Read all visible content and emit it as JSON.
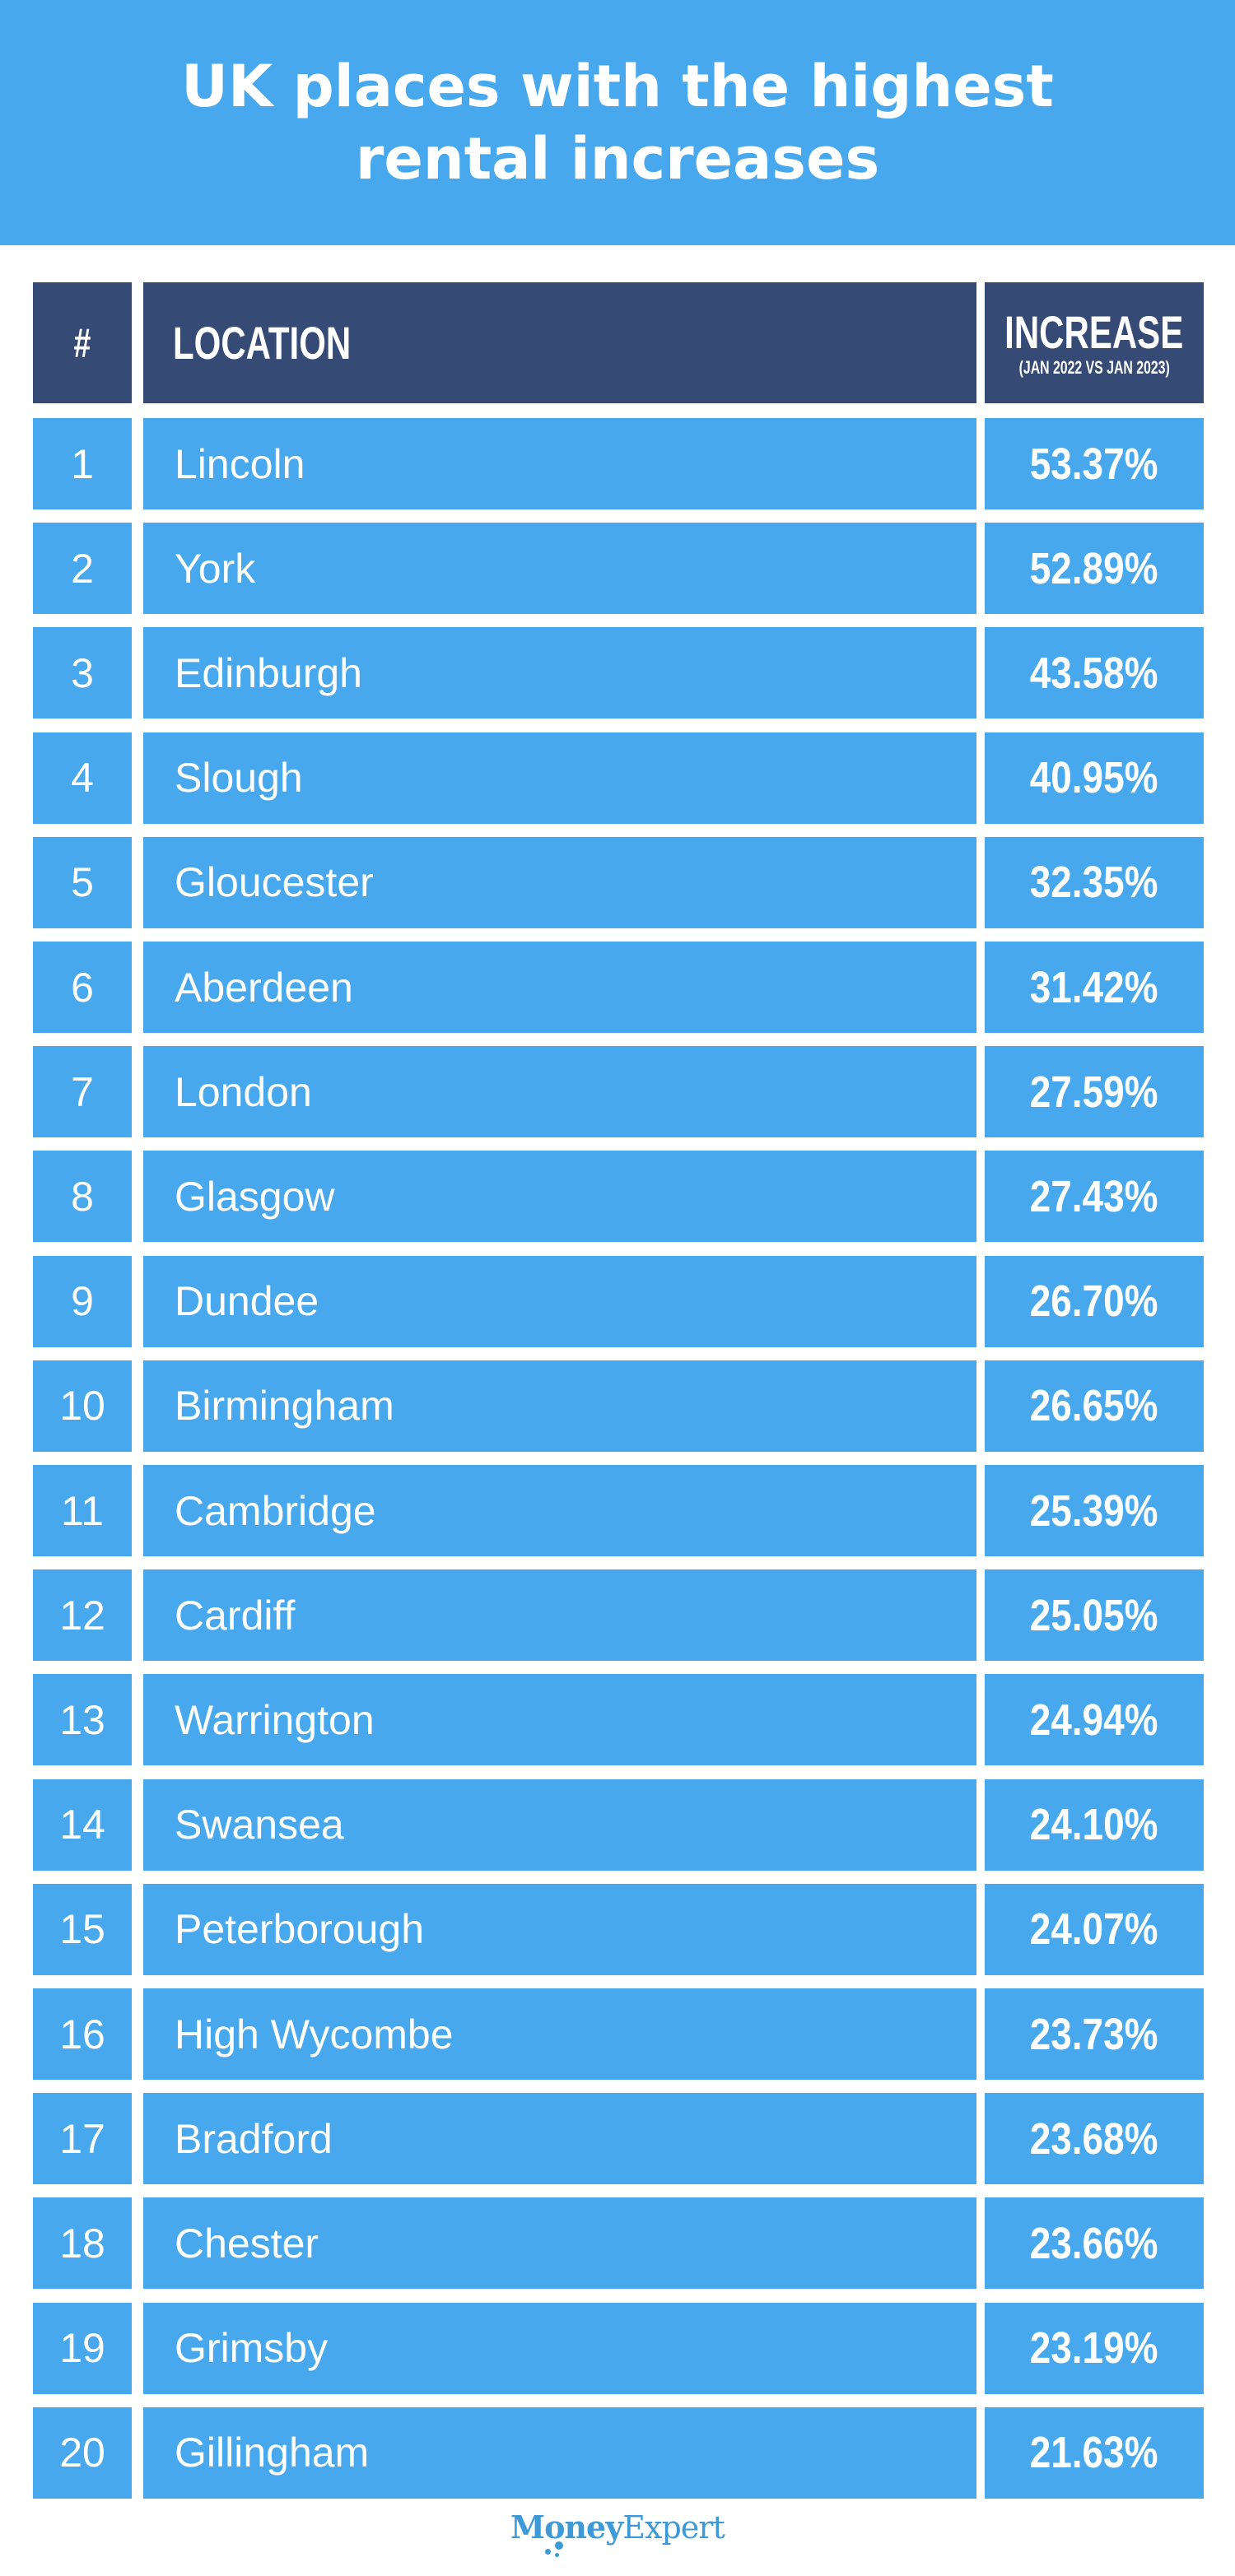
{
  "title": "UK places with the highest rental increases",
  "table": {
    "headers": {
      "rank": "#",
      "location": "LOCATION",
      "increase": "INCREASE",
      "increase_sub": "(JAN 2022 VS JAN 2023)"
    },
    "rows": [
      {
        "rank": "1",
        "location": "Lincoln",
        "increase": "53.37%"
      },
      {
        "rank": "2",
        "location": "York",
        "increase": "52.89%"
      },
      {
        "rank": "3",
        "location": "Edinburgh",
        "increase": "43.58%"
      },
      {
        "rank": "4",
        "location": "Slough",
        "increase": "40.95%"
      },
      {
        "rank": "5",
        "location": "Gloucester",
        "increase": "32.35%"
      },
      {
        "rank": "6",
        "location": "Aberdeen",
        "increase": "31.42%"
      },
      {
        "rank": "7",
        "location": "London",
        "increase": "27.59%"
      },
      {
        "rank": "8",
        "location": "Glasgow",
        "increase": "27.43%"
      },
      {
        "rank": "9",
        "location": "Dundee",
        "increase": "26.70%"
      },
      {
        "rank": "10",
        "location": "Birmingham",
        "increase": "26.65%"
      },
      {
        "rank": "11",
        "location": "Cambridge",
        "increase": "25.39%"
      },
      {
        "rank": "12",
        "location": "Cardiff",
        "increase": "25.05%"
      },
      {
        "rank": "13",
        "location": "Warrington",
        "increase": "24.94%"
      },
      {
        "rank": "14",
        "location": "Swansea",
        "increase": "24.10%"
      },
      {
        "rank": "15",
        "location": "Peterborough",
        "increase": "24.07%"
      },
      {
        "rank": "16",
        "location": "High Wycombe",
        "increase": "23.73%"
      },
      {
        "rank": "17",
        "location": "Bradford",
        "increase": "23.68%"
      },
      {
        "rank": "18",
        "location": "Chester",
        "increase": "23.66%"
      },
      {
        "rank": "19",
        "location": "Grimsby",
        "increase": "23.19%"
      },
      {
        "rank": "20",
        "location": "Gillingham",
        "increase": "21.63%"
      }
    ]
  },
  "logo": {
    "bold": "Money",
    "regular": "Expert"
  },
  "colors": {
    "banner": "#47a8ed",
    "header": "#354a74",
    "row": "#47a8ed",
    "logo": "#3d9ad6"
  }
}
